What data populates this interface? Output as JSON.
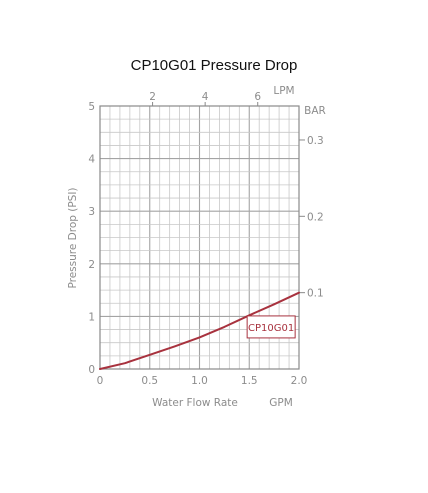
{
  "chart_data": {
    "type": "line",
    "title": "CP10G01 Pressure Drop",
    "xlabel": "Water Flow Rate",
    "x_unit": "GPM",
    "ylabel": "Pressure Drop (PSI)",
    "xlim": [
      0,
      2.0
    ],
    "ylim": [
      0,
      5
    ],
    "x_ticks": [
      0,
      0.5,
      1.0,
      1.5,
      2.0
    ],
    "x_tick_labels": [
      "0",
      "0.5",
      "1.0",
      "1.5",
      "2.0"
    ],
    "y_ticks": [
      0,
      1,
      2,
      3,
      4,
      5
    ],
    "y_tick_labels": [
      "0",
      "1",
      "2",
      "3",
      "4",
      "5"
    ],
    "top_axis": {
      "unit": "LPM",
      "ticks": [
        2,
        4,
        6
      ],
      "tick_labels": [
        "2",
        "4",
        "6"
      ],
      "lpm_per_gpm": 3.785
    },
    "right_axis": {
      "unit": "BAR",
      "ticks": [
        0.1,
        0.2,
        0.3
      ],
      "tick_labels": [
        "0.1",
        "0.2",
        "0.3"
      ],
      "bar_per_psi": 0.0689
    },
    "grid": true,
    "series": [
      {
        "name": "CP10G01",
        "color": "#a8323e",
        "x": [
          0,
          0.25,
          0.5,
          0.75,
          1.0,
          1.25,
          1.5,
          1.75,
          2.0
        ],
        "y": [
          0,
          0.11,
          0.27,
          0.43,
          0.6,
          0.8,
          1.02,
          1.23,
          1.45
        ]
      }
    ],
    "annotation": {
      "text": "CP10G01",
      "x": 1.72,
      "y": 0.8
    }
  }
}
